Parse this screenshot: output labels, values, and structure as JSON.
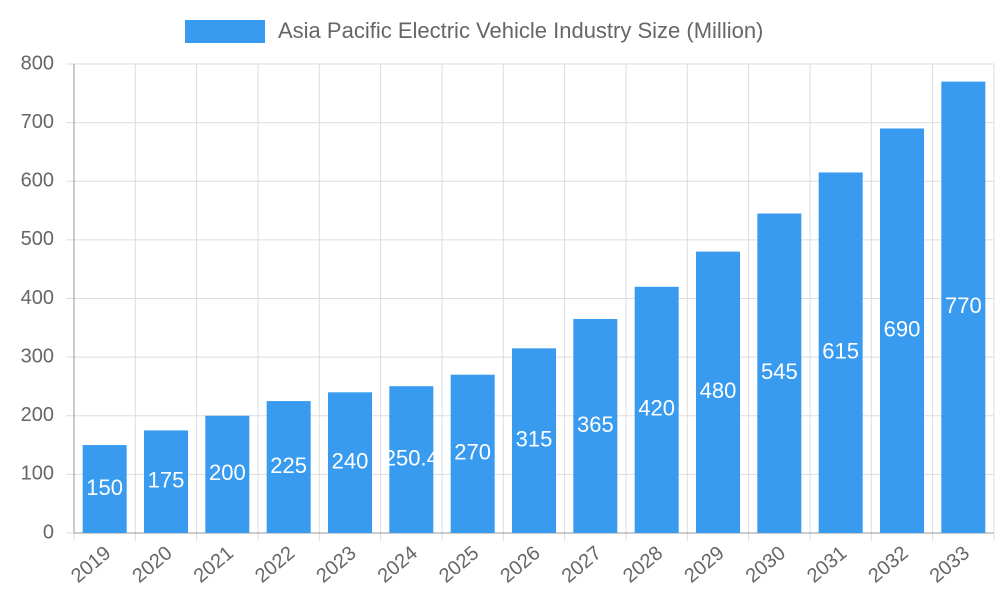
{
  "chart_data": {
    "type": "bar",
    "categories": [
      "2019",
      "2020",
      "2021",
      "2022",
      "2023",
      "2024",
      "2025",
      "2026",
      "2027",
      "2028",
      "2029",
      "2030",
      "2031",
      "2032",
      "2033"
    ],
    "series": [
      {
        "name": "Asia Pacific Electric Vehicle Industry Size (Million)",
        "color": "#389bf0",
        "values": [
          150,
          175,
          200,
          225,
          240,
          250.4,
          270,
          315,
          365,
          420,
          480,
          545,
          615,
          690,
          770
        ]
      }
    ],
    "ylim": [
      0,
      800
    ],
    "yticks": [
      0,
      100,
      200,
      300,
      400,
      500,
      600,
      700,
      800
    ],
    "grid": true,
    "legend": "top"
  }
}
